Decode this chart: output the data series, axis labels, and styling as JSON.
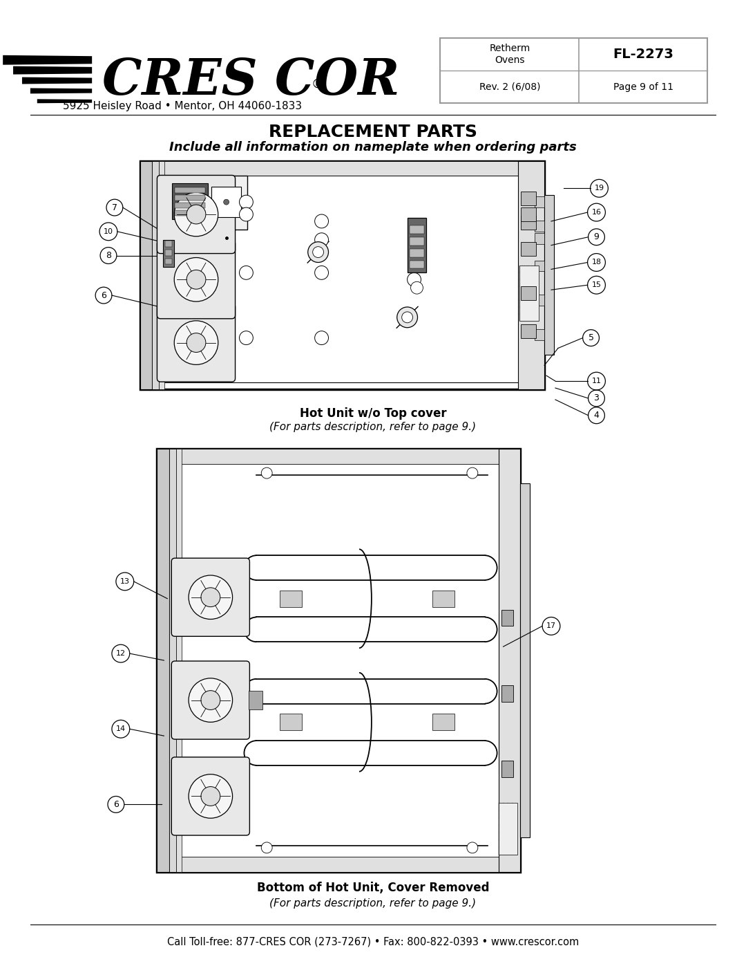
{
  "page_width": 10.8,
  "page_height": 13.97,
  "bg_color": "#ffffff",
  "title": "REPLACEMENT PARTS",
  "subtitle": "Include all information on nameplate when ordering parts",
  "company_address": "5925 Heisley Road • Mentor, OH 44060-1833",
  "doc_info": {
    "label1": "Retherm\nOvens",
    "label2": "FL-2273",
    "label3": "Rev. 2 (6/08)",
    "label4": "Page 9 of 11"
  },
  "caption1_bold": "Hot Unit w/o Top cover",
  "caption1_italic": "(For parts description, refer to page 9.)",
  "caption2_bold": "Bottom of Hot Unit, Cover Removed",
  "caption2_italic": "(For parts description, refer to page 9.)",
  "footer": "Call Toll-free: 877-CRES COR (273-7267) • Fax: 800-822-0393 • www.crescor.com"
}
